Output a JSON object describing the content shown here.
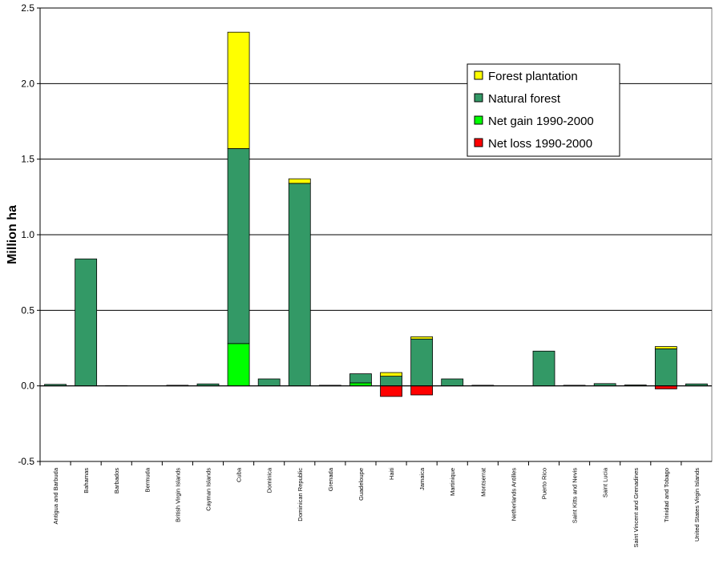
{
  "chart_data": {
    "type": "bar",
    "stacked": true,
    "title": "",
    "xlabel": "",
    "ylabel": "Million ha",
    "ylim": [
      -0.5,
      2.5
    ],
    "yticks": [
      "-0.5",
      "0.0",
      "0.5",
      "1.0",
      "1.5",
      "2.0",
      "2.5"
    ],
    "grid": true,
    "legend_position": "top-right",
    "categories": [
      "Antigua and Barbuda",
      "Bahamas",
      "Barbados",
      "Bermuda",
      "British Virgin Islands",
      "Cayman Islands",
      "Cuba",
      "Dominica",
      "Dominican Republic",
      "Grenada",
      "Guadeloupe",
      "Haiti",
      "Jamaica",
      "Martinique",
      "Montserrat",
      "Netherlands Antilles",
      "Puerto Rico",
      "Saint Kitts and Nevis",
      "Saint Lucia",
      "Saint Vincent and Grenadines",
      "Trinidad and Tobago",
      "United States Virgin Islands"
    ],
    "series": [
      {
        "name": "Net gain 1990-2000",
        "color": "#00ff00",
        "values": [
          0,
          0,
          0,
          0,
          0,
          0,
          0.28,
          0,
          0,
          0,
          0.02,
          0,
          0,
          0,
          0,
          0,
          0,
          0,
          0,
          0,
          0,
          0
        ]
      },
      {
        "name": "Natural forest",
        "color": "#339966",
        "values": [
          0.01,
          0.84,
          0.002,
          0,
          0.004,
          0.013,
          1.29,
          0.046,
          1.34,
          0.004,
          0.06,
          0.064,
          0.31,
          0.046,
          0.004,
          0,
          0.23,
          0.004,
          0.015,
          0.006,
          0.245,
          0.013
        ]
      },
      {
        "name": "Forest plantation",
        "color": "#ffff00",
        "values": [
          0,
          0,
          0,
          0,
          0,
          0,
          0.77,
          0,
          0.03,
          0,
          0,
          0.024,
          0.015,
          0,
          0,
          0,
          0,
          0,
          0,
          0,
          0.015,
          0
        ]
      },
      {
        "name": "Net loss 1990-2000",
        "color": "#ff0000",
        "values": [
          0,
          0,
          0,
          0,
          0,
          0,
          0,
          0,
          0,
          0,
          0,
          -0.07,
          -0.06,
          0,
          0,
          0,
          0,
          0,
          0,
          0,
          -0.02,
          0
        ]
      }
    ],
    "legend_order": [
      "Forest plantation",
      "Natural forest",
      "Net gain 1990-2000",
      "Net loss 1990-2000"
    ]
  }
}
